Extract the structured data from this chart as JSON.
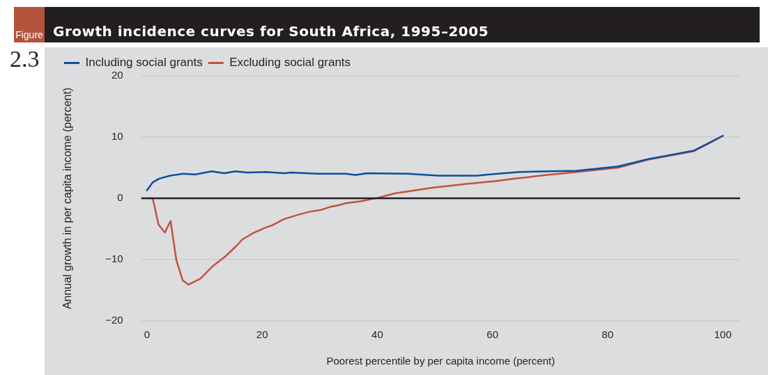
{
  "chart_data": {
    "type": "line",
    "title": "Growth incidence curves for South Africa, 1995–2005",
    "xlabel": "Poorest percentile by per capita income (percent)",
    "ylabel": "Annual growth in per capita income (percent)",
    "annotations": [
      "Figure",
      "2.3"
    ],
    "xlim": [
      -1,
      103
    ],
    "xticks": [
      0,
      20,
      40,
      60,
      80,
      100
    ],
    "ylim": [
      -20,
      20
    ],
    "yticks": [
      -20,
      -10,
      0,
      10,
      20
    ],
    "grid": "y",
    "legend": "top left",
    "marker": "none",
    "line_style": "solid",
    "ref_lines": [
      {
        "axis": "y",
        "value": 0,
        "label": null,
        "color": "#231f20"
      }
    ],
    "series": [
      {
        "name": "Including social grants",
        "color": "#0b4f9c",
        "x": [
          0,
          1,
          2.1,
          4,
          6.2,
          8.4,
          11.2,
          13.4,
          15.4,
          17.4,
          20.8,
          23.8,
          25,
          29.8,
          34.6,
          36.2,
          38.2,
          45.4,
          50.6,
          57.4,
          59.4,
          64.6,
          69.4,
          74.6,
          81.8,
          87,
          95,
          100
        ],
        "values": [
          1.3,
          2.6,
          3.2,
          3.7,
          4.0,
          3.9,
          4.4,
          4.1,
          4.4,
          4.2,
          4.3,
          4.1,
          4.2,
          4.0,
          4.0,
          3.8,
          4.1,
          4.0,
          3.7,
          3.7,
          3.9,
          4.3,
          4.4,
          4.5,
          5.2,
          6.4,
          7.8,
          10.2
        ]
      },
      {
        "name": "Excluding social grants",
        "color": "#c0533d",
        "x": [
          0,
          1,
          2,
          3.1,
          4.1,
          5.1,
          6.2,
          7.2,
          9.3,
          11.4,
          13.6,
          15.6,
          16.6,
          18.6,
          20.8,
          21.8,
          23.8,
          26.6,
          28.2,
          30.2,
          31.8,
          33,
          34.6,
          37,
          40.2,
          43,
          49.4,
          55,
          60.6,
          63.8,
          69.4,
          74.6,
          81.8,
          87,
          95,
          96.6,
          100
        ],
        "values": [
          0,
          0,
          -4.3,
          -5.6,
          -3.7,
          -10.1,
          -13.4,
          -14.1,
          -13.1,
          -11.1,
          -9.5,
          -7.7,
          -6.7,
          -5.6,
          -4.7,
          -4.4,
          -3.4,
          -2.6,
          -2.2,
          -1.9,
          -1.4,
          -1.2,
          -0.8,
          -0.5,
          0.1,
          0.8,
          1.7,
          2.3,
          2.8,
          3.2,
          3.8,
          4.3,
          5.0,
          6.3,
          7.7,
          8.5,
          10.2
        ]
      }
    ]
  }
}
